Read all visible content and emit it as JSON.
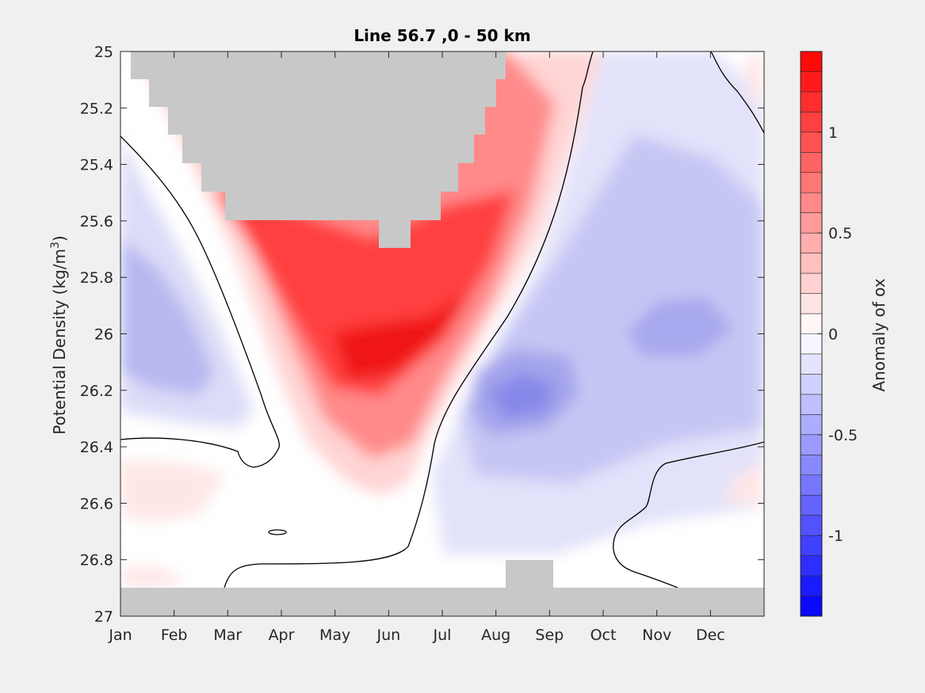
{
  "chart_data": {
    "type": "heatmap",
    "title": "Line 56.7 ,0 - 50 km",
    "xlabel": "",
    "ylabel": "Potential Density (kg/m",
    "ylabel_superscript": "3",
    "ylabel_suffix": ")",
    "x_categories": [
      "Jan",
      "Feb",
      "Mar",
      "Apr",
      "May",
      "Jun",
      "Jul",
      "Aug",
      "Sep",
      "Oct",
      "Nov",
      "Dec"
    ],
    "x_range": [
      0,
      12
    ],
    "ylim": [
      25,
      27
    ],
    "y_reversed": true,
    "y_ticks": [
      "25",
      "25.2",
      "25.4",
      "25.6",
      "25.8",
      "26",
      "26.2",
      "26.4",
      "26.6",
      "26.8",
      "27"
    ],
    "y_tick_values": [
      25,
      25.2,
      25.4,
      25.6,
      25.8,
      26,
      26.2,
      26.4,
      26.6,
      26.8,
      27
    ],
    "colorbar": {
      "label": "Anomaly of ox",
      "range": [
        -1.4,
        1.4
      ],
      "ticks": [
        1,
        0.5,
        0,
        -0.5,
        -1
      ],
      "tick_labels": [
        "1",
        "0.5",
        "0",
        "-0.5",
        "-1"
      ],
      "colormap": "blue-white-red",
      "levels": 28
    },
    "features": {
      "positive_anomaly_core": {
        "month": 5.4,
        "density": 26.0,
        "value": 1.3
      },
      "negative_anomaly_core": {
        "month": 7.9,
        "density": 26.25,
        "value": -0.7
      },
      "negative_anomaly_secondary": {
        "month": 10.9,
        "density": 26.0,
        "value": -0.55
      },
      "negative_anomaly_early": {
        "month": 1.0,
        "density": 26.0,
        "value": -0.45
      },
      "no_data_mask_top": {
        "density_bottom": 25.6,
        "month_start": 0.2,
        "month_end": 7.2
      },
      "no_data_mask_bottom": {
        "density_top": 26.9
      }
    }
  }
}
